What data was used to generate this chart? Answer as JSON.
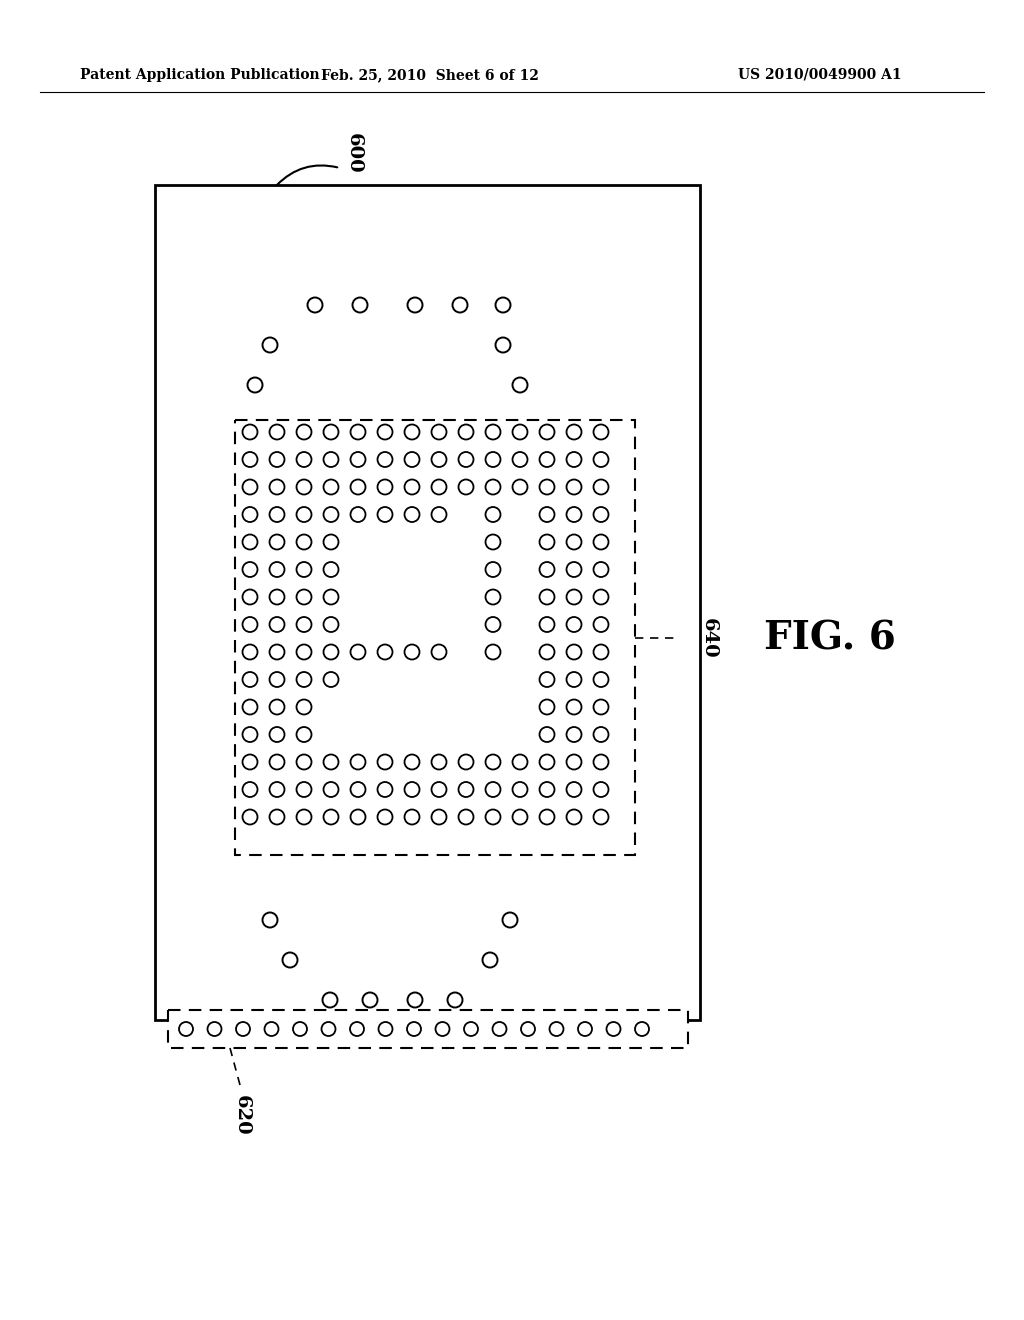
{
  "fig_width": 10.24,
  "fig_height": 13.2,
  "bg_color": "#ffffff",
  "header_left": "Patent Application Publication",
  "header_mid": "Feb. 25, 2010  Sheet 6 of 12",
  "header_right": "US 2010/0049900 A1",
  "fig_label": "FIG. 6",
  "label_600": "600",
  "label_620": "620",
  "label_640": "640"
}
